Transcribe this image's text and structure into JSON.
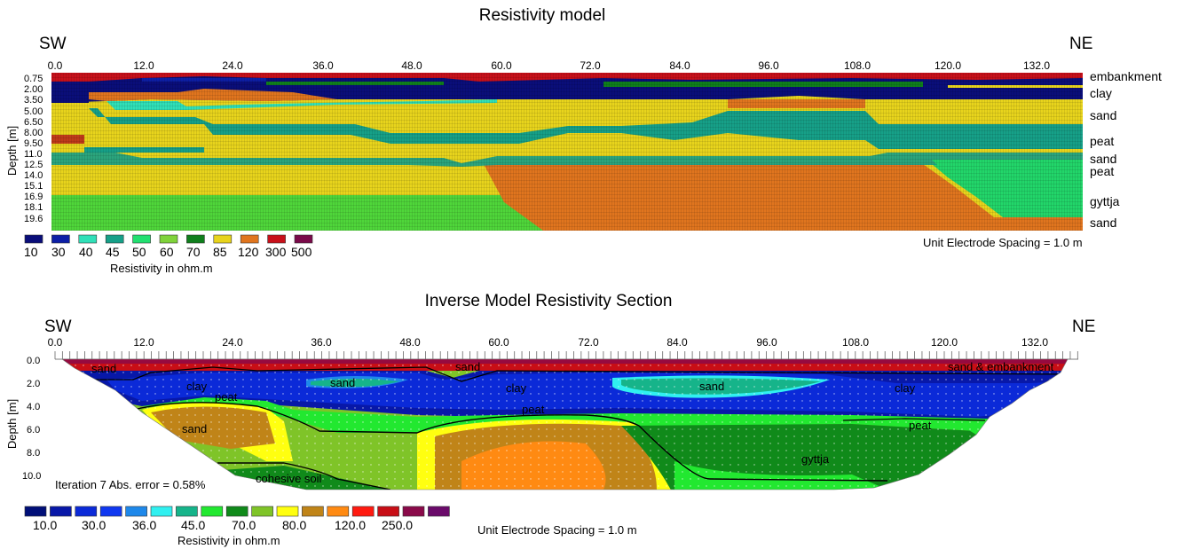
{
  "top": {
    "title": "Resistivity model",
    "dir_left": "SW",
    "dir_right": "NE",
    "x_ticks": [
      "0.0",
      "12.0",
      "24.0",
      "36.0",
      "48.0",
      "60.0",
      "72.0",
      "84.0",
      "96.0",
      "108.0",
      "120.0",
      "132.0"
    ],
    "depth_ticks": [
      "0.75",
      "2.00",
      "3.50",
      "5.00",
      "6.50",
      "8.00",
      "9.50",
      "11.0",
      "12.5",
      "14.0",
      "15.1",
      "16.9",
      "18.1",
      "19.6"
    ],
    "y_label": "Depth [m]",
    "layer_labels": [
      "embankment",
      "clay",
      "sand",
      "peat",
      "sand",
      "peat",
      "gyttja",
      "sand"
    ],
    "legend_values": [
      "10",
      "30",
      "40",
      "45",
      "50",
      "60",
      "70",
      "85",
      "120",
      "300",
      "500"
    ],
    "legend_colors": [
      "#0a0e7a",
      "#0d1fa6",
      "#30e0b8",
      "#16a088",
      "#22e070",
      "#7fd33a",
      "#0f7f1c",
      "#e8d41c",
      "#e0751e",
      "#c8101a",
      "#7a0a4a"
    ],
    "legend_title": "Resistivity in ohm.m",
    "unit_spacing": "Unit Electrode Spacing = 1.0 m"
  },
  "bottom": {
    "title": "Inverse Model Resistivity Section",
    "dir_left": "SW",
    "dir_right": "NE",
    "x_ticks": [
      "0.0",
      "12.0",
      "24.0",
      "36.0",
      "48.0",
      "60.0",
      "72.0",
      "84.0",
      "96.0",
      "108.0",
      "120.0",
      "132.0"
    ],
    "depth_ticks": [
      "0.0",
      "2.0",
      "4.0",
      "6.0",
      "8.0",
      "10.0"
    ],
    "y_label": "Depth [m]",
    "annotations": [
      "sand",
      "sand",
      "sand",
      "sand & embankment",
      "clay",
      "clay",
      "clay",
      "peat",
      "peat",
      "peat",
      "sand",
      "gyttja",
      "cohesive soil"
    ],
    "iteration": "Iteration 7 Abs. error = 0.58%",
    "legend_values": [
      "10.0",
      "30.0",
      "36.0",
      "45.0",
      "70.0",
      "80.0",
      "120.0",
      "250.0"
    ],
    "legend_colors": [
      "#000f78",
      "#0818a8",
      "#0b2ad8",
      "#1038f0",
      "#1e88ea",
      "#30f0f0",
      "#16b48a",
      "#22e830",
      "#108a1a",
      "#7fc428",
      "#ffff10",
      "#c08418",
      "#ff8a12",
      "#ff1a10",
      "#c80e16",
      "#8a0a4a",
      "#6a0a6a"
    ],
    "legend_title": "Resistivity in ohm.m",
    "unit_spacing": "Unit Electrode Spacing = 1.0 m"
  }
}
